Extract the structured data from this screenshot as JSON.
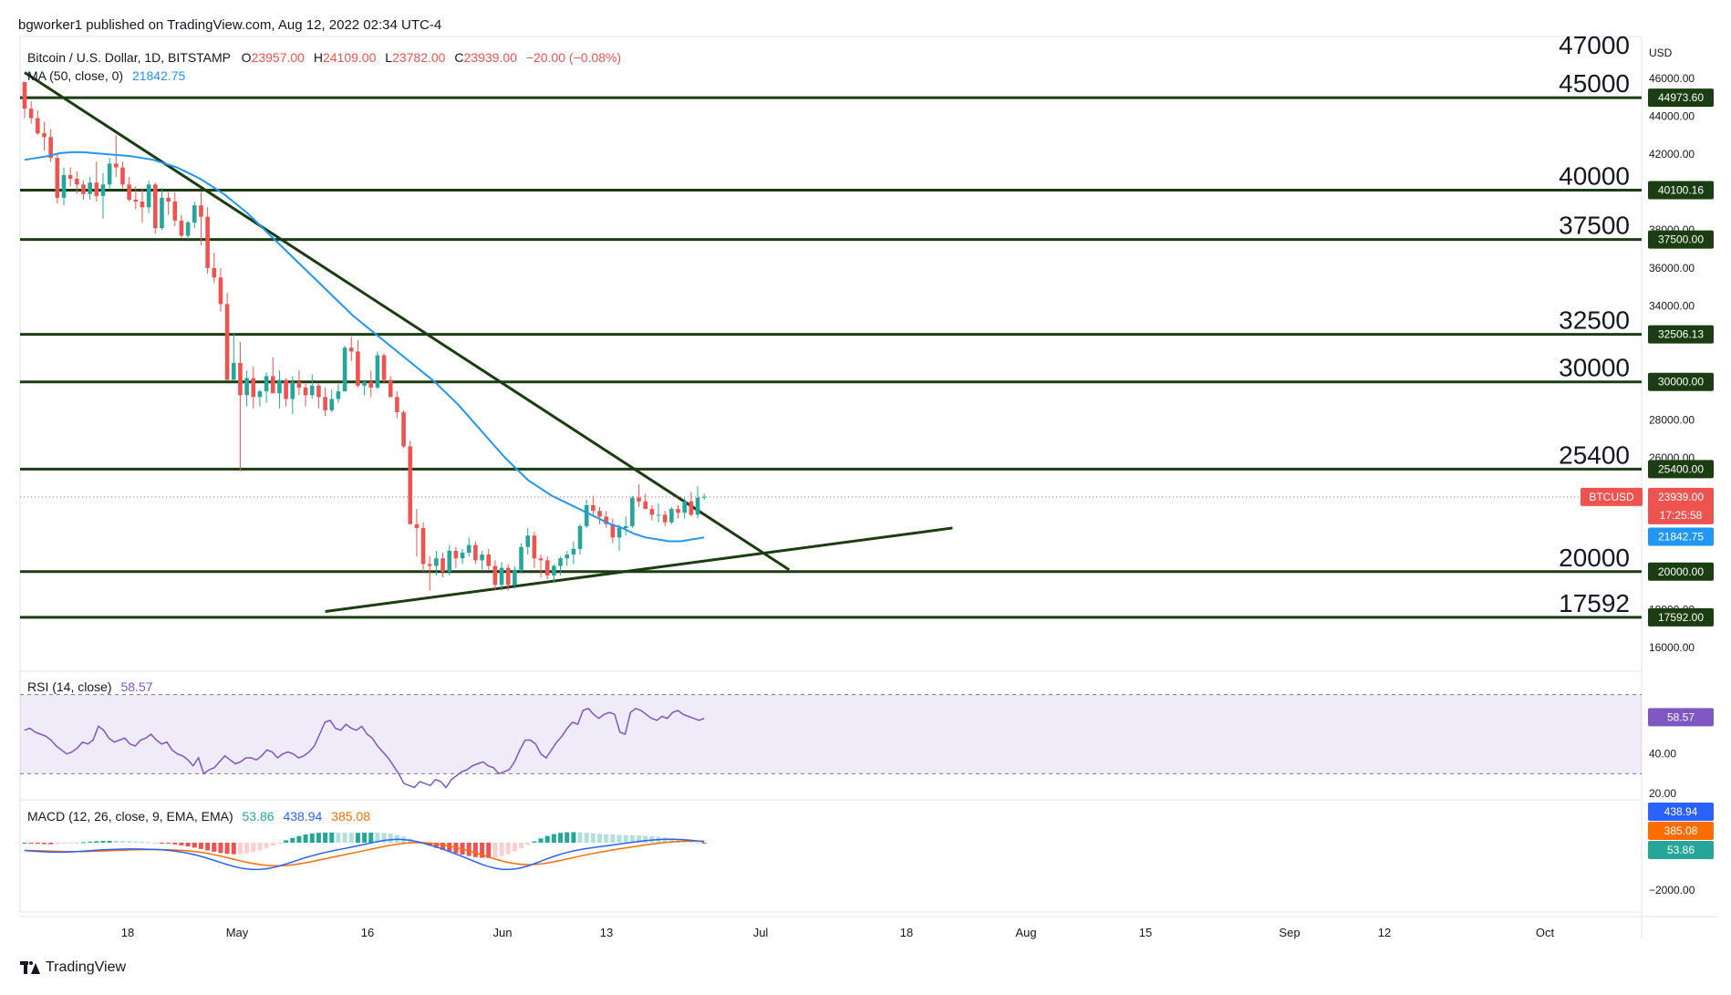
{
  "header": {
    "published": "bgworker1 published on TradingView.com, Aug 12, 2022 02:34 UTC-4",
    "symbol": "Bitcoin / U.S. Dollar, 1D, BITSTAMP",
    "open_label": "O",
    "open": "23957.00",
    "high_label": "H",
    "high": "24109.00",
    "low_label": "L",
    "low": "23782.00",
    "close_label": "C",
    "close": "23939.00",
    "change": "−20.00 (−0.08%)",
    "ma_label": "MA (50, close, 0)",
    "ma_value": "21842.75"
  },
  "rsi_header": {
    "label": "RSI (14, close)",
    "value": "58.57"
  },
  "macd_header": {
    "label": "MACD (12, 26, close, 9, EMA, EMA)",
    "v1": "53.86",
    "v2": "438.94",
    "v3": "385.08"
  },
  "currency": "USD",
  "footer": {
    "brand": "TradingView"
  },
  "colors": {
    "up": "#26a69a",
    "down": "#ef5350",
    "ma": "#2196f3",
    "levels": "#1b3d12",
    "rsi": "#7e57c2",
    "macd": "#2962ff",
    "signal": "#ff6d00"
  },
  "chart_data": {
    "type": "candlestick",
    "title": "Bitcoin / U.S. Dollar, 1D, BITSTAMP",
    "x_ticks": [
      "18",
      "May",
      "16",
      "Jun",
      "13",
      "Jul",
      "18",
      "Aug",
      "15",
      "Sep",
      "12",
      "Oct"
    ],
    "y_ticks": [
      "46000.00",
      "44000.00",
      "42000.00",
      "38000.00",
      "36000.00",
      "34000.00",
      "28000.00",
      "26000.00",
      "18000.00",
      "16000.00"
    ],
    "ylim": [
      14800,
      48200
    ],
    "horizontal_levels": [
      {
        "label": "47000",
        "value": 47000,
        "badge": null
      },
      {
        "label": "45000",
        "value": 44973.6,
        "badge": "44973.60"
      },
      {
        "label": "40000",
        "value": 40100.16,
        "badge": "40100.16"
      },
      {
        "label": "37500",
        "value": 37500,
        "badge": "37500.00"
      },
      {
        "label": "32500",
        "value": 32506.13,
        "badge": "32506.13"
      },
      {
        "label": "30000",
        "value": 30000,
        "badge": "30000.00"
      },
      {
        "label": "25400",
        "value": 25400,
        "badge": "25400.00"
      },
      {
        "label": "20000",
        "value": 20000,
        "badge": "20000.00"
      },
      {
        "label": "17592",
        "value": 17592,
        "badge": "17592.00"
      }
    ],
    "last_price": {
      "label": "BTCUSD",
      "value": "23939.00",
      "countdown": "17:25:58"
    },
    "ma_badge": "21842.75",
    "trendlines": [
      {
        "name": "descending",
        "from": {
          "day": 0,
          "price": 46300
        },
        "to": {
          "day": 117,
          "price": 20100
        }
      },
      {
        "name": "ascending",
        "from": {
          "day": 46,
          "price": 17900
        },
        "to": {
          "day": 142,
          "price": 22300
        }
      }
    ],
    "candles": [
      [
        45800,
        45800,
        43900,
        44400
      ],
      [
        44400,
        44800,
        43600,
        43900
      ],
      [
        43900,
        44300,
        43000,
        43100
      ],
      [
        43100,
        43700,
        42200,
        42900
      ],
      [
        42900,
        43300,
        41600,
        41800
      ],
      [
        41800,
        42000,
        39400,
        39700
      ],
      [
        39700,
        41300,
        39300,
        40900
      ],
      [
        40900,
        41300,
        40300,
        40700
      ],
      [
        40700,
        41100,
        39900,
        40400
      ],
      [
        40400,
        40600,
        39600,
        39900
      ],
      [
        39900,
        40800,
        39600,
        40500
      ],
      [
        40500,
        41600,
        39500,
        39800
      ],
      [
        39800,
        41000,
        38600,
        40400
      ],
      [
        40400,
        41800,
        40200,
        41500
      ],
      [
        41500,
        43000,
        40800,
        41300
      ],
      [
        41300,
        41600,
        40200,
        40400
      ],
      [
        40400,
        40800,
        39500,
        39600
      ],
      [
        39600,
        40300,
        39100,
        39500
      ],
      [
        39500,
        40200,
        38400,
        39200
      ],
      [
        39200,
        40600,
        38900,
        40400
      ],
      [
        40400,
        40500,
        37800,
        38100
      ],
      [
        38100,
        40200,
        38000,
        39700
      ],
      [
        39700,
        40000,
        38800,
        39500
      ],
      [
        39500,
        40000,
        38200,
        38500
      ],
      [
        38500,
        38800,
        37600,
        37700
      ],
      [
        37700,
        38500,
        37500,
        38400
      ],
      [
        38400,
        39500,
        38100,
        39300
      ],
      [
        39300,
        40000,
        37200,
        38700
      ],
      [
        38700,
        39200,
        35700,
        36000
      ],
      [
        36000,
        36800,
        35200,
        35500
      ],
      [
        35500,
        36000,
        33700,
        34100
      ],
      [
        34100,
        34700,
        30300,
        30100
      ],
      [
        30100,
        32600,
        30200,
        31000
      ],
      [
        31000,
        32100,
        25300,
        29300
      ],
      [
        29300,
        30600,
        28700,
        30200
      ],
      [
        30200,
        30800,
        28600,
        29200
      ],
      [
        29200,
        29600,
        28700,
        29500
      ],
      [
        29500,
        30500,
        28900,
        30300
      ],
      [
        30300,
        31300,
        29400,
        29400
      ],
      [
        29400,
        30600,
        28600,
        30100
      ],
      [
        30100,
        30200,
        28700,
        29100
      ],
      [
        29100,
        30300,
        28300,
        30000
      ],
      [
        30000,
        30600,
        29300,
        29700
      ],
      [
        29700,
        29900,
        28700,
        29300
      ],
      [
        29300,
        30400,
        29100,
        29800
      ],
      [
        29800,
        29900,
        28600,
        29200
      ],
      [
        29200,
        29700,
        28200,
        28500
      ],
      [
        28500,
        29600,
        28400,
        29100
      ],
      [
        29100,
        29900,
        28900,
        29500
      ],
      [
        29500,
        31900,
        29500,
        31800
      ],
      [
        31800,
        32400,
        31100,
        31600
      ],
      [
        31600,
        32200,
        29700,
        29800
      ],
      [
        29800,
        30100,
        29300,
        30000
      ],
      [
        30000,
        30600,
        29200,
        29700
      ],
      [
        29700,
        31600,
        29600,
        31400
      ],
      [
        31400,
        31500,
        29900,
        30100
      ],
      [
        30100,
        30300,
        29300,
        29200
      ],
      [
        29200,
        29500,
        28100,
        28400
      ],
      [
        28400,
        28500,
        26500,
        26600
      ],
      [
        26600,
        26900,
        22500,
        22500
      ],
      [
        22500,
        23300,
        20800,
        22300
      ],
      [
        22300,
        22600,
        20000,
        20400
      ],
      [
        20400,
        20800,
        19000,
        20300
      ],
      [
        20300,
        21100,
        19800,
        20700
      ],
      [
        20700,
        21000,
        19700,
        20000
      ],
      [
        20000,
        21400,
        19800,
        21100
      ],
      [
        21100,
        21300,
        20200,
        20700
      ],
      [
        20700,
        21200,
        20400,
        21000
      ],
      [
        21000,
        21800,
        20800,
        21400
      ],
      [
        21400,
        21600,
        20400,
        20600
      ],
      [
        20600,
        21100,
        20100,
        20900
      ],
      [
        20900,
        21200,
        20100,
        20300
      ],
      [
        20300,
        20600,
        19000,
        19300
      ],
      [
        19300,
        20500,
        19000,
        20200
      ],
      [
        20200,
        20400,
        19000,
        19300
      ],
      [
        19300,
        20300,
        19100,
        20100
      ],
      [
        20100,
        21500,
        19900,
        21300
      ],
      [
        21300,
        22300,
        20900,
        21900
      ],
      [
        21900,
        22100,
        20200,
        20700
      ],
      [
        20700,
        20900,
        19700,
        20600
      ],
      [
        20600,
        20800,
        19600,
        19800
      ],
      [
        19800,
        20400,
        19400,
        20300
      ],
      [
        20300,
        20800,
        19800,
        20700
      ],
      [
        20700,
        21100,
        20300,
        20900
      ],
      [
        20900,
        21600,
        20400,
        21200
      ],
      [
        21200,
        22500,
        20900,
        22400
      ],
      [
        22400,
        23800,
        22300,
        23500
      ],
      [
        23500,
        24000,
        23000,
        23200
      ],
      [
        23200,
        23400,
        22500,
        22900
      ],
      [
        22900,
        23200,
        22300,
        22500
      ],
      [
        22500,
        22800,
        21500,
        21800
      ],
      [
        21800,
        22500,
        21100,
        22300
      ],
      [
        22300,
        22900,
        21900,
        22400
      ],
      [
        22400,
        24000,
        22300,
        23900
      ],
      [
        23900,
        24600,
        23400,
        23700
      ],
      [
        23700,
        24100,
        23300,
        23300
      ],
      [
        23300,
        23500,
        22700,
        23000
      ],
      [
        23000,
        23600,
        22600,
        23000
      ],
      [
        23000,
        23200,
        22400,
        22600
      ],
      [
        22600,
        23400,
        22500,
        23300
      ],
      [
        23300,
        23500,
        22800,
        23100
      ],
      [
        23100,
        23900,
        22800,
        23700
      ],
      [
        23700,
        24200,
        22900,
        23000
      ],
      [
        23000,
        24500,
        22800,
        23900
      ],
      [
        23939,
        24109,
        23782,
        23939
      ]
    ],
    "ma50": [
      41700,
      41800,
      41900,
      42050,
      42100,
      42100,
      42050,
      42000,
      41950,
      41900,
      41800,
      41700,
      41500,
      41300,
      41000,
      40700,
      40300,
      39900,
      39400,
      38900,
      38300,
      37700,
      37100,
      36500,
      35900,
      35300,
      34700,
      34100,
      33500,
      33000,
      32500,
      32000,
      31500,
      31000,
      30500,
      30000,
      29400,
      28800,
      28100,
      27400,
      26700,
      26000,
      25400,
      24800,
      24400,
      24000,
      23700,
      23400,
      23100,
      22800,
      22500,
      22300,
      22000,
      21800,
      21700,
      21600,
      21600,
      21700,
      21800
    ],
    "rsi": {
      "ylim": [
        20,
        80
      ],
      "y_ticks": [
        "40.00",
        "20.00"
      ],
      "band": [
        30,
        70
      ],
      "last_badge": "58.57",
      "values": [
        52,
        53,
        51,
        50,
        49,
        47,
        44,
        42,
        40,
        41,
        43,
        46,
        45,
        47,
        54,
        52,
        48,
        46,
        47,
        48,
        45,
        44,
        47,
        48,
        50,
        47,
        45,
        46,
        42,
        40,
        39,
        37,
        34,
        38,
        30,
        32,
        33,
        36,
        39,
        37,
        35,
        36,
        38,
        38,
        37,
        39,
        42,
        41,
        38,
        40,
        41,
        40,
        38,
        39,
        41,
        44,
        50,
        56,
        57,
        53,
        52,
        55,
        53,
        52,
        54,
        50,
        48,
        44,
        41,
        38,
        34,
        30,
        25,
        24,
        23,
        26,
        25,
        24,
        27,
        26,
        23,
        27,
        29,
        31,
        32,
        34,
        35,
        36,
        34,
        33,
        30,
        31,
        32,
        36,
        42,
        47,
        47,
        45,
        40,
        38,
        42,
        46,
        49,
        53,
        56,
        55,
        62,
        63,
        60,
        58,
        60,
        61,
        60,
        51,
        50,
        61,
        63,
        62,
        60,
        58,
        57,
        59,
        58,
        61,
        62,
        60,
        59,
        58,
        57,
        58
      ]
    },
    "macd": {
      "y_ticks": [
        "−2000.00"
      ],
      "badges": [
        "438.94",
        "385.08",
        "53.86"
      ]
    }
  }
}
